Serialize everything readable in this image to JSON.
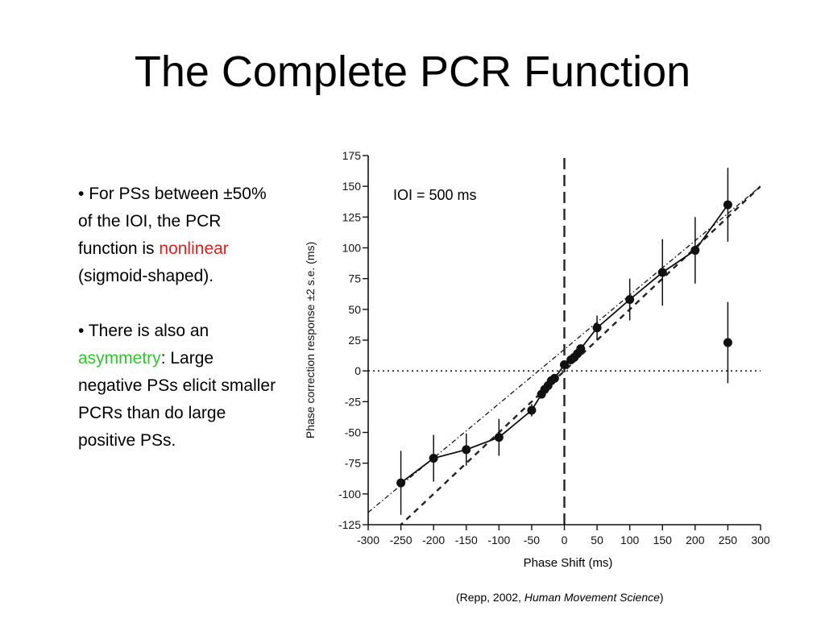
{
  "slide": {
    "title": "The Complete PCR Function"
  },
  "bullets": [
    {
      "marker": "•",
      "before": " For PSs between ±50% of the IOI, the PCR function is ",
      "highlight": "nonlinear",
      "highlight_color": "#e0201b",
      "after": " (sigmoid-shaped)."
    },
    {
      "marker": "•",
      "before": " There is also an ",
      "highlight": "asymmetry",
      "highlight_color": "#2ec82e",
      "after": ": Large negative PSs elicit smaller PCRs than do large positive PSs."
    }
  ],
  "citation": {
    "prefix": "(Repp, 2002, ",
    "journal": "Human Movement Science",
    "suffix": ")"
  },
  "chart_data": {
    "type": "line",
    "xlabel": "Phase Shift (ms)",
    "ylabel": "Phase correction response ±2 s.e. (ms)",
    "annotation": "IOI = 500 ms",
    "xlim": [
      -300,
      300
    ],
    "ylim": [
      -125,
      175
    ],
    "x_ticks": [
      -300,
      -250,
      -200,
      -150,
      -100,
      -50,
      0,
      50,
      100,
      150,
      200,
      250,
      300
    ],
    "y_ticks": [
      175,
      150,
      125,
      100,
      75,
      50,
      25,
      0,
      -25,
      -50,
      -75,
      -100,
      -125
    ],
    "series": [
      {
        "points": [
          {
            "x": -250,
            "y": -91,
            "err": 26
          },
          {
            "x": -200,
            "y": -71,
            "err": 19
          },
          {
            "x": -150,
            "y": -64,
            "err": 13
          },
          {
            "x": -100,
            "y": -54,
            "err": 15
          },
          {
            "x": -50,
            "y": -32,
            "err": 5
          },
          {
            "x": -35,
            "y": -19,
            "err": 3
          },
          {
            "x": -30,
            "y": -15,
            "err": 3
          },
          {
            "x": -25,
            "y": -12,
            "err": 3
          },
          {
            "x": -20,
            "y": -8,
            "err": 3
          },
          {
            "x": -15,
            "y": -6,
            "err": 2
          },
          {
            "x": 0,
            "y": 5,
            "err": 2
          },
          {
            "x": 10,
            "y": 9,
            "err": 2
          },
          {
            "x": 15,
            "y": 11,
            "err": 2
          },
          {
            "x": 20,
            "y": 14,
            "err": 3
          },
          {
            "x": 25,
            "y": 18,
            "err": 3
          },
          {
            "x": 50,
            "y": 35,
            "err": 10
          },
          {
            "x": 100,
            "y": 58,
            "err": 17
          },
          {
            "x": 150,
            "y": 80,
            "err": 27
          },
          {
            "x": 200,
            "y": 98,
            "err": 27
          },
          {
            "x": 250,
            "y": 135,
            "err": 30
          }
        ]
      },
      {
        "points": [
          {
            "x": 250,
            "y": 23,
            "err": 33
          }
        ]
      }
    ],
    "reference_lines": [
      {
        "style": "dashed",
        "from": [
          -300,
          -150
        ],
        "to": [
          300,
          150
        ]
      },
      {
        "style": "dash-dot",
        "from": [
          -300,
          -115
        ],
        "to": [
          300,
          150
        ]
      },
      {
        "style": "dotted",
        "from": [
          -300,
          0
        ],
        "to": [
          300,
          0
        ]
      },
      {
        "style": "dashed-vertical",
        "from": [
          0,
          -125
        ],
        "to": [
          0,
          175
        ]
      }
    ]
  }
}
